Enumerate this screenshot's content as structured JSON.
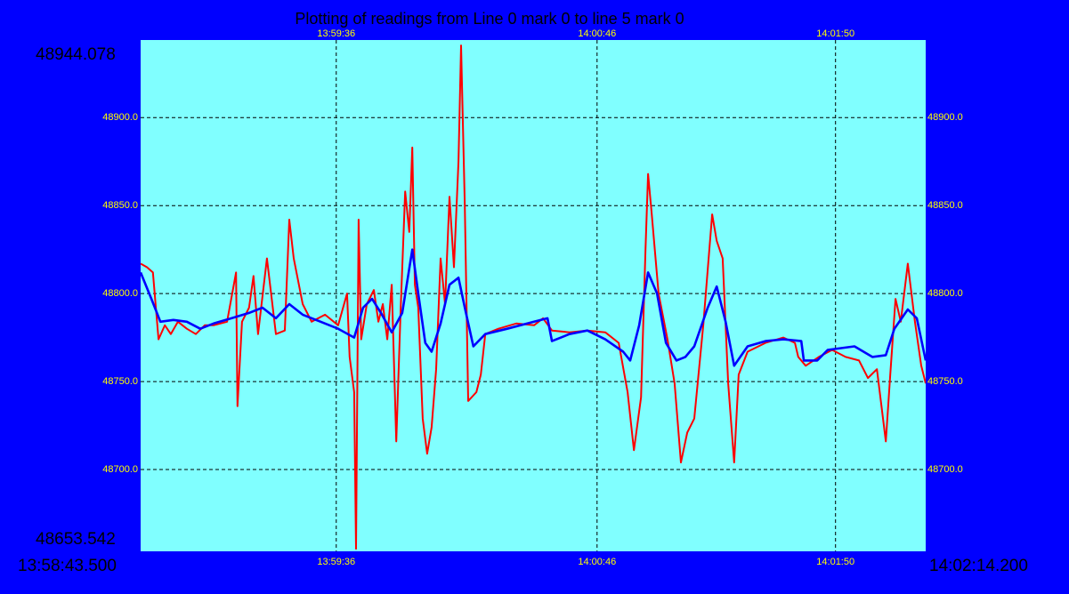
{
  "chart_data": {
    "type": "line",
    "title": "Plotting of readings from Line 0 mark 0 to line 5 mark 0",
    "xlim": [
      {
        "value": 50323.5,
        "label": "13:58:43.500"
      },
      {
        "value": 50534.2,
        "label": "14:02:14.200"
      }
    ],
    "xticks": [
      {
        "value": 50376,
        "label": "13:59:36"
      },
      {
        "value": 50446,
        "label": "14:00:46"
      },
      {
        "value": 50510,
        "label": "14:01:50"
      }
    ],
    "ylim": [
      48653.542,
      48944.078
    ],
    "yticks": [
      {
        "value": 48700,
        "label": "48700.0"
      },
      {
        "value": 48750,
        "label": "48750.0"
      },
      {
        "value": 48800,
        "label": "48800.0"
      },
      {
        "value": 48850,
        "label": "48850.0"
      },
      {
        "value": 48900,
        "label": "48900.0"
      }
    ],
    "grid": true,
    "series": [
      {
        "color": "#ff0000",
        "x": [
          50323.5,
          50325.2,
          50326.8,
          50328.3,
          50330.0,
          50331.6,
          50333.5,
          50335.9,
          50338.3,
          50340.7,
          50343.1,
          50346.7,
          50349.1,
          50349.5,
          50350.7,
          50352.6,
          50353.8,
          50355.0,
          50357.4,
          50359.8,
          50362.2,
          50363.4,
          50364.6,
          50367.0,
          50369.4,
          50373.0,
          50376.5,
          50378.9,
          50379.6,
          50380.8,
          50381.3,
          50382.0,
          50382.7,
          50384.2,
          50386.1,
          50387.3,
          50388.5,
          50389.7,
          50390.9,
          50392.1,
          50393.3,
          50394.5,
          50395.6,
          50396.4,
          50397.1,
          50398.0,
          50399.2,
          50400.4,
          50401.6,
          50402.8,
          50404.0,
          50405.2,
          50406.4,
          50407.6,
          50408.8,
          50409.5,
          50410.5,
          50411.4,
          50413.6,
          50414.8,
          50416.0,
          50419.5,
          50424.3,
          50429.1,
          50431.5,
          50433.9,
          50438.6,
          50443.4,
          50448.2,
          50451.8,
          50454.2,
          50455.9,
          50457.8,
          50459.0,
          50459.7,
          50460.6,
          50462.5,
          50464.9,
          50466.8,
          50468.5,
          50470.2,
          50472.1,
          50474.5,
          50476.9,
          50478.1,
          50479.7,
          50481.2,
          50482.8,
          50484.0,
          50486.4,
          50491.2,
          50496.0,
          50499.1,
          50500.0,
          50502.0,
          50505.5,
          50509.1,
          50512.7,
          50516.3,
          50518.7,
          50521.1,
          50523.5,
          50524.7,
          50526.1,
          50527.5,
          50529.4,
          50531.3,
          50533.0,
          50534.2
        ],
        "values": [
          48817,
          48815,
          48812,
          48774,
          48782,
          48777,
          48784,
          48780,
          48777,
          48782,
          48782,
          48784,
          48812,
          48736,
          48784,
          48792,
          48810,
          48777,
          48820,
          48777,
          48779,
          48842,
          48820,
          48794,
          48784,
          48788,
          48782,
          48800,
          48764,
          48744,
          48655,
          48842,
          48774,
          48794,
          48802,
          48784,
          48794,
          48774,
          48805,
          48716,
          48792,
          48858,
          48835,
          48883,
          48805,
          48792,
          48729,
          48709,
          48724,
          48757,
          48820,
          48794,
          48855,
          48815,
          48875,
          48941,
          48850,
          48739,
          48744,
          48754,
          48777,
          48780,
          48783,
          48782,
          48786,
          48779,
          48778,
          48779,
          48778,
          48772,
          48744,
          48711,
          48741,
          48825,
          48868,
          48847,
          48800,
          48774,
          48749,
          48704,
          48721,
          48729,
          48782,
          48845,
          48830,
          48820,
          48749,
          48704,
          48754,
          48767,
          48772,
          48775,
          48772,
          48764,
          48759,
          48764,
          48768,
          48764,
          48762,
          48752,
          48757,
          48716,
          48754,
          48797,
          48784,
          48817,
          48784,
          48759,
          48749
        ]
      },
      {
        "color": "#0000ff",
        "x": [
          50323.5,
          50326.4,
          50328.8,
          50332.3,
          50335.9,
          50339.5,
          50343.1,
          50347.9,
          50352.6,
          50356.2,
          50359.8,
          50363.4,
          50367.0,
          50371.8,
          50376.5,
          50380.8,
          50383.2,
          50385.6,
          50388.0,
          50390.9,
          50393.7,
          50396.4,
          50398.0,
          50399.9,
          50401.6,
          50404.0,
          50406.4,
          50408.8,
          50410.5,
          50412.8,
          50416.0,
          50421.9,
          50429.1,
          50432.7,
          50433.9,
          50438.6,
          50443.4,
          50448.2,
          50453.0,
          50454.9,
          50457.3,
          50459.7,
          50462.1,
          50464.5,
          50467.3,
          50469.7,
          50472.1,
          50475.7,
          50478.1,
          50480.5,
          50482.8,
          50486.4,
          50491.2,
          50496.0,
          50500.8,
          50501.5,
          50505.1,
          50507.9,
          50515.1,
          50519.9,
          50523.5,
          50525.8,
          50529.4,
          50531.8,
          50534.2
        ],
        "values": [
          48812,
          48797,
          48784,
          48785,
          48784,
          48780,
          48783,
          48786,
          48789,
          48792,
          48786,
          48794,
          48788,
          48784,
          48780,
          48775,
          48792,
          48797,
          48789,
          48778,
          48789,
          48825,
          48800,
          48772,
          48767,
          48783,
          48805,
          48809,
          48792,
          48770,
          48777,
          48780,
          48784,
          48786,
          48773,
          48777,
          48779,
          48774,
          48767,
          48762,
          48782,
          48812,
          48800,
          48772,
          48762,
          48764,
          48770,
          48792,
          48804,
          48784,
          48759,
          48770,
          48773,
          48774,
          48773,
          48762,
          48762,
          48768,
          48770,
          48764,
          48765,
          48780,
          48791,
          48786,
          48762
        ]
      }
    ]
  }
}
